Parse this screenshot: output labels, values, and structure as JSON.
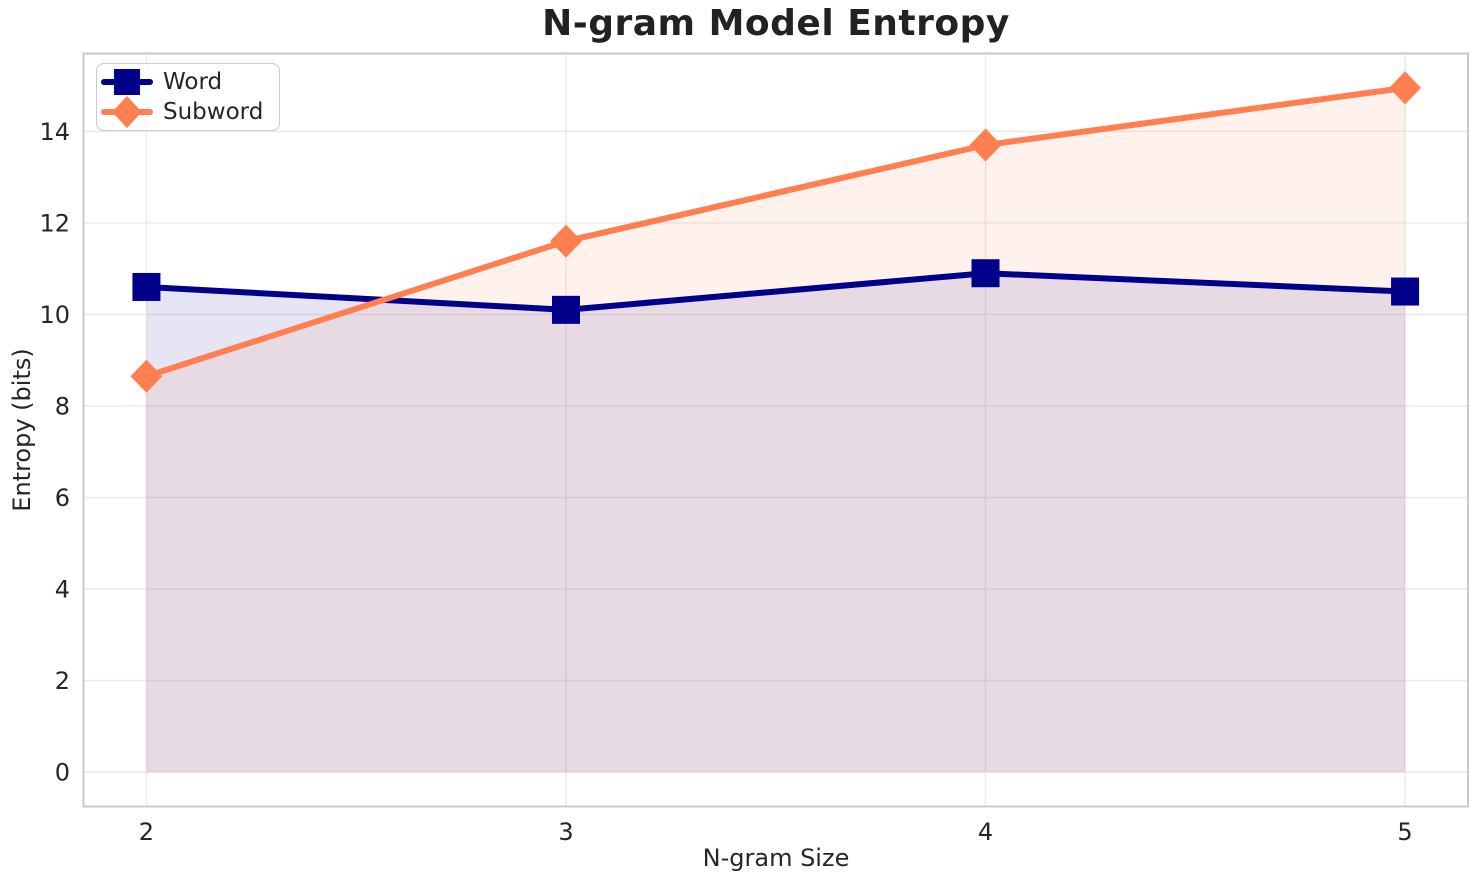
{
  "chart_data": {
    "type": "line",
    "title": "N-gram Model Entropy",
    "xlabel": "N-gram Size",
    "ylabel": "Entropy (bits)",
    "x": [
      2,
      3,
      4,
      5
    ],
    "xticks": [
      "2",
      "3",
      "4",
      "5"
    ],
    "yticks": [
      "0",
      "2",
      "4",
      "6",
      "8",
      "10",
      "12",
      "14"
    ],
    "xtick_values": [
      2,
      3,
      4,
      5
    ],
    "ytick_values": [
      0,
      2,
      4,
      6,
      8,
      10,
      12,
      14
    ],
    "xlim": [
      1.85,
      5.15
    ],
    "ylim": [
      -0.75,
      15.7
    ],
    "grid": true,
    "legend_position": "upper left",
    "fill_opacity": 0.1,
    "line_width": 6,
    "colors": {
      "grid": "#ebebeb",
      "spine": "#c9c9c9",
      "text": "#262626",
      "background": "#ffffff"
    },
    "series": [
      {
        "name": "Word",
        "marker": "square",
        "color": "#00008b",
        "values": [
          10.6,
          10.1,
          10.9,
          10.5
        ],
        "area_fill_to_zero": true
      },
      {
        "name": "Subword",
        "marker": "diamond",
        "color": "#ff7f50",
        "values": [
          8.65,
          11.6,
          13.7,
          14.95
        ],
        "area_fill_to_zero": true
      }
    ]
  }
}
